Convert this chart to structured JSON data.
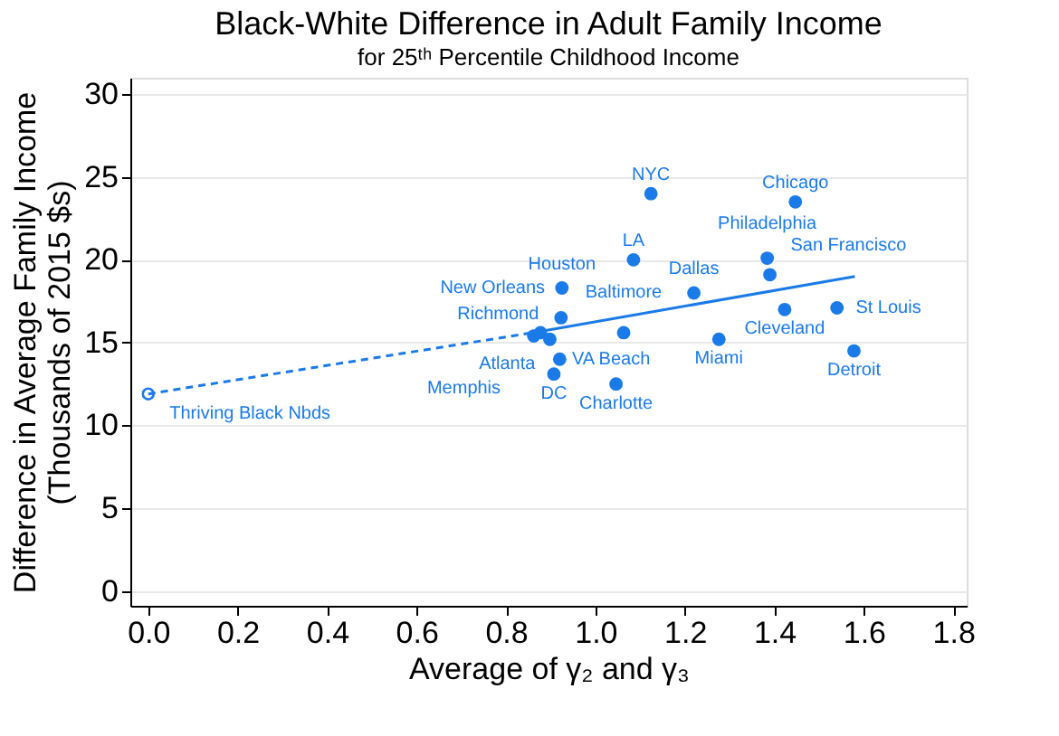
{
  "chart_data": {
    "type": "scatter",
    "title": "Black-White Difference in Adult Family Income",
    "subtitle": "for 25ᵗʰ Percentile Childhood Income",
    "xlabel": "Average of γ₂ and γ₃",
    "ylabel": "Difference in Average Family Income\n(Thousands of 2015 $s)",
    "xlim": [
      -0.04,
      1.83
    ],
    "ylim": [
      -0.9,
      31
    ],
    "xticks": [
      {
        "value": 0,
        "label": "0.0"
      },
      0.2,
      0.4,
      0.6,
      0.8,
      {
        "value": 1,
        "label": "1.0"
      },
      1.2,
      1.4,
      1.6,
      1.8
    ],
    "yticks": [
      0,
      5,
      10,
      15,
      20,
      25,
      30
    ],
    "grid": "y",
    "marker": "circle",
    "series": [
      {
        "type": "line",
        "color": "#1a7ae8",
        "line_style": "dashed",
        "marker": "none",
        "x": [
          0,
          0.86
        ],
        "values": [
          11.9,
          15.6
        ]
      },
      {
        "type": "line",
        "color": "#1a7ae8",
        "line_style": "solid",
        "marker": "none",
        "x": [
          0.86,
          1.58
        ],
        "values": [
          15.6,
          19.0
        ]
      },
      {
        "color": "#1a7ae8",
        "x": [
          1.124,
          1.447,
          1.085,
          1.384,
          1.39,
          0.925,
          1.22,
          1.423,
          1.54,
          1.276,
          1.578,
          1.063,
          0.923,
          0.862,
          0.877,
          0.898,
          0.92,
          0.907,
          1.046
        ],
        "values": [
          24.0,
          23.5,
          20.0,
          20.1,
          19.1,
          18.3,
          18.0,
          17.0,
          17.1,
          15.2,
          14.5,
          15.6,
          16.5,
          15.4,
          15.6,
          15.2,
          14.0,
          13.1,
          12.5
        ],
        "value_labels": [
          "NYC",
          "Chicago",
          "LA",
          "Philadelphia",
          "San Francisco",
          "Houston",
          "Dallas",
          "Cleveland",
          "St Louis",
          "Miami",
          "Detroit",
          "Baltimore",
          "New Orleans",
          "Memphis",
          "Richmond",
          "Atlanta",
          "VA Beach",
          "DC",
          "Charlotte"
        ]
      },
      {
        "color": "#1a7ae8",
        "marker": "open circle",
        "x": [
          0
        ],
        "values": [
          11.9
        ],
        "value_labels": [
          "Thriving Black Nbds"
        ]
      }
    ]
  }
}
